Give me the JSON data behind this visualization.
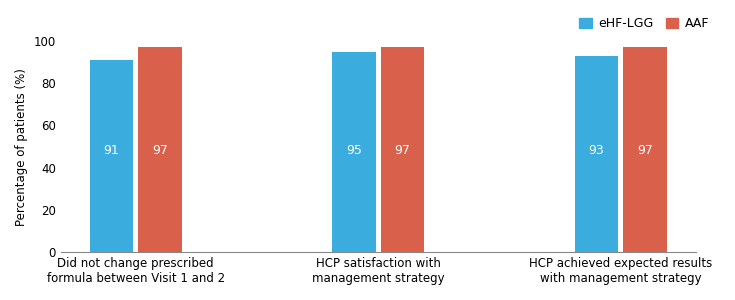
{
  "categories": [
    "Did not change prescribed\nformula between Visit 1 and 2",
    "HCP satisfaction with\nmanagement strategy",
    "HCP achieved expected results\nwith management strategy"
  ],
  "eHF_LGG_values": [
    91,
    95,
    93
  ],
  "AAF_values": [
    97,
    97,
    97
  ],
  "eHF_LGG_color": "#3AACDE",
  "AAF_color": "#D9614C",
  "ylabel": "Percentage of patients (%)",
  "ylim": [
    0,
    100
  ],
  "yticks": [
    0,
    20,
    40,
    60,
    80,
    100
  ],
  "legend_labels": [
    "eHF-LGG",
    "AAF"
  ],
  "bar_width": 0.18,
  "bar_gap": 0.02,
  "label_fontsize": 8.5,
  "tick_fontsize": 8.5,
  "legend_fontsize": 9,
  "value_fontsize": 9,
  "value_color": "#FFFFFF",
  "background_color": "#FFFFFF"
}
